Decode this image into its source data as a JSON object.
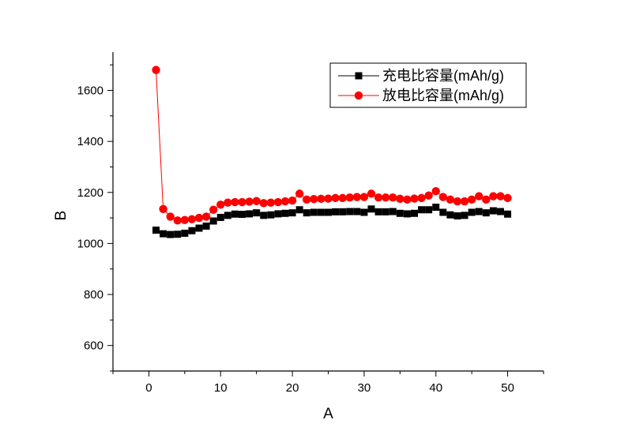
{
  "chart_data": {
    "type": "scatter",
    "xlabel": "A",
    "ylabel": "B",
    "xlim": [
      -5,
      55
    ],
    "ylim": [
      500,
      1750
    ],
    "xticks": [
      0,
      10,
      20,
      30,
      40,
      50
    ],
    "yticks": [
      600,
      800,
      1000,
      1200,
      1400,
      1600
    ],
    "legend_position": "top-right",
    "grid": false,
    "x": [
      1,
      2,
      3,
      4,
      5,
      6,
      7,
      8,
      9,
      10,
      11,
      12,
      13,
      14,
      15,
      16,
      17,
      18,
      19,
      20,
      21,
      22,
      23,
      24,
      25,
      26,
      27,
      28,
      29,
      30,
      31,
      32,
      33,
      34,
      35,
      36,
      37,
      38,
      39,
      40,
      41,
      42,
      43,
      44,
      45,
      46,
      47,
      48,
      49,
      50
    ],
    "series": [
      {
        "name": "充电比容量(mAh/g)",
        "color": "#000000",
        "marker": "square",
        "values": [
          1052,
          1038,
          1035,
          1036,
          1040,
          1050,
          1060,
          1068,
          1088,
          1102,
          1110,
          1115,
          1114,
          1116,
          1120,
          1110,
          1112,
          1116,
          1118,
          1120,
          1132,
          1120,
          1122,
          1122,
          1122,
          1124,
          1124,
          1125,
          1125,
          1122,
          1135,
          1124,
          1124,
          1125,
          1118,
          1116,
          1118,
          1132,
          1132,
          1142,
          1122,
          1112,
          1108,
          1110,
          1122,
          1125,
          1120,
          1128,
          1125,
          1115
        ]
      },
      {
        "name": "放电比容量(mAh/g)",
        "color": "#ff0000",
        "marker": "circle",
        "values": [
          1680,
          1135,
          1105,
          1090,
          1092,
          1095,
          1100,
          1105,
          1132,
          1152,
          1160,
          1162,
          1162,
          1164,
          1166,
          1158,
          1160,
          1162,
          1165,
          1168,
          1195,
          1172,
          1174,
          1175,
          1176,
          1178,
          1178,
          1180,
          1182,
          1182,
          1195,
          1180,
          1180,
          1180,
          1175,
          1172,
          1176,
          1178,
          1188,
          1205,
          1182,
          1172,
          1165,
          1165,
          1172,
          1185,
          1172,
          1185,
          1185,
          1178
        ]
      }
    ]
  }
}
